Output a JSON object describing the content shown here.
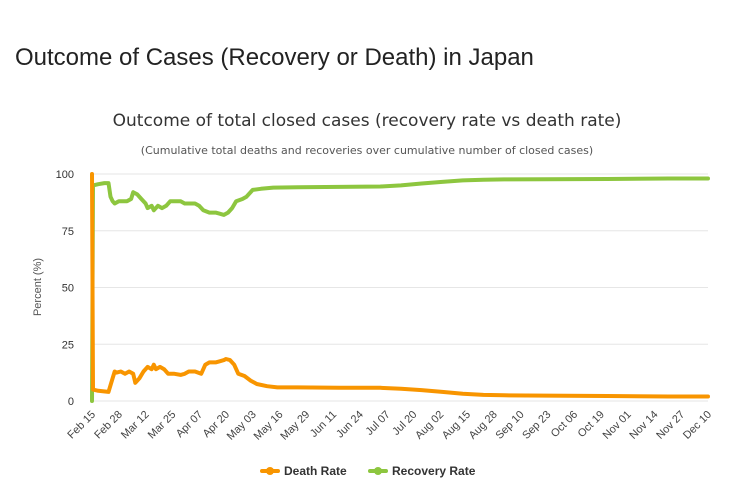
{
  "page": {
    "heading": "Outcome of Cases (Recovery or Death) in Japan"
  },
  "chart_data": {
    "type": "line",
    "title": "Outcome of total closed cases (recovery rate vs death rate)",
    "subtitle": "(Cumulative total deaths and recoveries over cumulative number of closed cases)",
    "ylabel": "Percent (%)",
    "xlabel": "",
    "ylim": [
      0,
      100
    ],
    "yticks": [
      0,
      25,
      50,
      75,
      100
    ],
    "x_tick_labels": [
      "Feb 15",
      "Feb 28",
      "Mar 12",
      "Mar 25",
      "Apr 07",
      "Apr 20",
      "May 03",
      "May 16",
      "May 29",
      "Jun 11",
      "Jun 24",
      "Jul 07",
      "Jul 20",
      "Aug 02",
      "Aug 15",
      "Aug 28",
      "Sep 10",
      "Sep 23",
      "Oct 06",
      "Oct 19",
      "Nov 01",
      "Nov 14",
      "Nov 27",
      "Dec 10"
    ],
    "x_span_days": [
      0,
      299
    ],
    "grid": true,
    "legend_position": "bottom",
    "series": [
      {
        "name": "Death Rate",
        "color": "#f89500",
        "points": [
          [
            0,
            100
          ],
          [
            0.5,
            5
          ],
          [
            3,
            4.5
          ],
          [
            8,
            4
          ],
          [
            10,
            10
          ],
          [
            11,
            13
          ],
          [
            12,
            12.5
          ],
          [
            14,
            13
          ],
          [
            16,
            12
          ],
          [
            18,
            13
          ],
          [
            20,
            12
          ],
          [
            21,
            8
          ],
          [
            23,
            10
          ],
          [
            25,
            13
          ],
          [
            27,
            15
          ],
          [
            29,
            14
          ],
          [
            30,
            16
          ],
          [
            31,
            14
          ],
          [
            33,
            15
          ],
          [
            35,
            14
          ],
          [
            37,
            12
          ],
          [
            40,
            12
          ],
          [
            43,
            11.5
          ],
          [
            45,
            12
          ],
          [
            47,
            13
          ],
          [
            50,
            13
          ],
          [
            53,
            12
          ],
          [
            55,
            16
          ],
          [
            57,
            17
          ],
          [
            60,
            17
          ],
          [
            62,
            17.5
          ],
          [
            64,
            18
          ],
          [
            65,
            18.5
          ],
          [
            67,
            18
          ],
          [
            69,
            16
          ],
          [
            71,
            12
          ],
          [
            74,
            11
          ],
          [
            77,
            9
          ],
          [
            80,
            7.5
          ],
          [
            85,
            6.5
          ],
          [
            90,
            6
          ],
          [
            100,
            6
          ],
          [
            120,
            5.8
          ],
          [
            140,
            5.8
          ],
          [
            150,
            5.4
          ],
          [
            160,
            4.8
          ],
          [
            170,
            4
          ],
          [
            180,
            3.2
          ],
          [
            190,
            2.7
          ],
          [
            200,
            2.5
          ],
          [
            220,
            2.4
          ],
          [
            250,
            2.2
          ],
          [
            280,
            2
          ],
          [
            299,
            2
          ]
        ]
      },
      {
        "name": "Recovery Rate",
        "color": "#8dc63f",
        "points": [
          [
            0,
            0
          ],
          [
            0.5,
            95
          ],
          [
            3,
            95.5
          ],
          [
            6,
            96
          ],
          [
            8,
            96
          ],
          [
            9,
            90
          ],
          [
            10,
            88
          ],
          [
            11,
            87
          ],
          [
            13,
            88
          ],
          [
            15,
            88
          ],
          [
            17,
            88
          ],
          [
            19,
            89
          ],
          [
            20,
            92
          ],
          [
            22,
            91
          ],
          [
            24,
            89
          ],
          [
            26,
            87
          ],
          [
            27,
            85
          ],
          [
            29,
            86
          ],
          [
            30,
            84
          ],
          [
            32,
            86
          ],
          [
            34,
            85
          ],
          [
            36,
            86
          ],
          [
            38,
            88
          ],
          [
            41,
            88
          ],
          [
            43,
            88
          ],
          [
            45,
            87
          ],
          [
            47,
            87
          ],
          [
            50,
            87
          ],
          [
            52,
            86
          ],
          [
            54,
            84
          ],
          [
            57,
            83
          ],
          [
            60,
            83
          ],
          [
            62,
            82.5
          ],
          [
            64,
            82
          ],
          [
            66,
            83
          ],
          [
            68,
            85
          ],
          [
            70,
            88
          ],
          [
            73,
            89
          ],
          [
            75,
            90
          ],
          [
            78,
            93
          ],
          [
            82,
            93.5
          ],
          [
            88,
            94
          ],
          [
            100,
            94.2
          ],
          [
            120,
            94.3
          ],
          [
            140,
            94.5
          ],
          [
            150,
            95
          ],
          [
            160,
            95.8
          ],
          [
            170,
            96.5
          ],
          [
            180,
            97.2
          ],
          [
            190,
            97.5
          ],
          [
            200,
            97.6
          ],
          [
            220,
            97.7
          ],
          [
            250,
            97.8
          ],
          [
            280,
            98
          ],
          [
            299,
            98
          ]
        ]
      }
    ]
  }
}
